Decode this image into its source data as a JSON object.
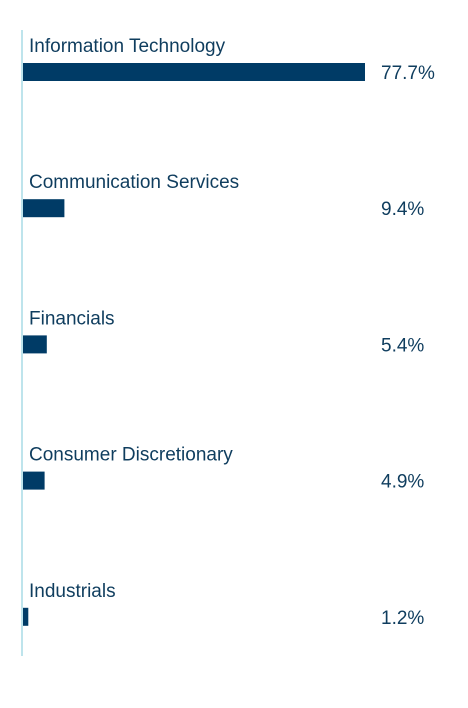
{
  "chart_data": {
    "type": "bar",
    "orientation": "horizontal",
    "categories": [
      "Information Technology",
      "Communication Services",
      "Financials",
      "Consumer Discretionary",
      "Industrials"
    ],
    "values": [
      77.7,
      9.4,
      5.4,
      4.9,
      1.2
    ],
    "value_labels": [
      "77.7%",
      "9.4%",
      "5.4%",
      "4.9%",
      "1.2%"
    ],
    "unit": "%",
    "xlim": [
      0,
      77.7
    ],
    "grid": false,
    "legend": "none",
    "colors": {
      "bar": "#003b66",
      "text": "#0f3d5e",
      "axis": "#a9dbe6"
    }
  }
}
